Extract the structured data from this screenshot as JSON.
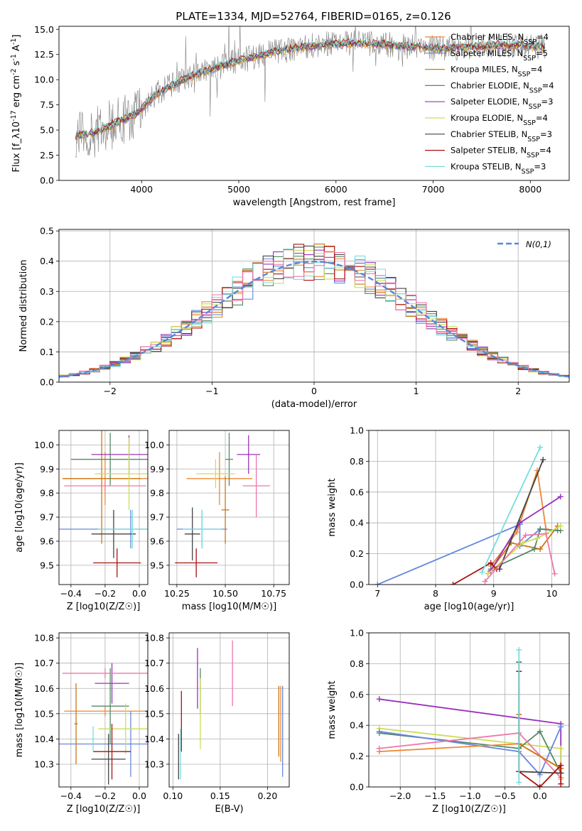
{
  "figure_title": "PLATE=1334, MJD=52764, FIBERID=0165, z=0.126",
  "colors": {
    "chabrier_miles": "#ee8833",
    "salpeter_miles": "#6688dd",
    "kroupa_miles": "#cc7711",
    "chabrier_elodie": "#558866",
    "salpeter_elodie": "#9933bb",
    "kroupa_elodie": "#ccdd55",
    "chabrier_stelib": "#444444",
    "salpeter_stelib": "#aa1111",
    "kroupa_stelib": "#77dddd",
    "pink": "#ee77aa",
    "data": "#808080",
    "normal": "#5588dd"
  },
  "chart_data": [
    {
      "id": "spectrum",
      "type": "line",
      "title": "PLATE=1334, MJD=52764, FIBERID=0165, z=0.126",
      "xlabel": "wavelength [Angstrom, rest frame]",
      "ylabel": "Flux [f_λ10^-17 erg cm^-2 s^-1 A^-1]",
      "xlim": [
        3150,
        8400
      ],
      "ylim": [
        0,
        15.3
      ],
      "xticks": [
        4000,
        5000,
        6000,
        7000,
        8000
      ],
      "yticks": [
        0.0,
        2.5,
        5.0,
        7.5,
        10.0,
        12.5,
        15.0
      ],
      "ytick_labels": [
        "0.0",
        "2.5",
        "5.0",
        "7.5",
        "10.0",
        "12.5",
        "15.0"
      ],
      "legend_position": "upper right",
      "series": [
        {
          "name": "Chabrier MILES, N_SSP=4",
          "color": "#ee8833"
        },
        {
          "name": "Salpeter MILES, N_SSP=5",
          "color": "#6688dd"
        },
        {
          "name": "Kroupa MILES, N_SSP=4",
          "color": "#cc7711"
        },
        {
          "name": "Chabrier ELODIE, N_SSP=4",
          "color": "#558866"
        },
        {
          "name": "Salpeter ELODIE, N_SSP=3",
          "color": "#9933bb"
        },
        {
          "name": "Kroupa ELODIE, N_SSP=4",
          "color": "#ccdd55"
        },
        {
          "name": "Chabrier STELIB, N_SSP=3",
          "color": "#444444"
        },
        {
          "name": "Salpeter STELIB, N_SSP=4",
          "color": "#aa1111"
        },
        {
          "name": "Kroupa STELIB, N_SSP=3",
          "color": "#77dddd"
        }
      ],
      "continuum_x": [
        3350,
        3500,
        3650,
        3800,
        3950,
        4050,
        4150,
        4300,
        4500,
        4700,
        4900,
        5100,
        5300,
        5500,
        5700,
        5900,
        6100,
        6300,
        6500,
        6700,
        6900,
        7100,
        7300,
        7500,
        7700,
        7900,
        8100
      ],
      "continuum_y": [
        4.5,
        4.7,
        5.3,
        6.0,
        6.6,
        7.6,
        8.6,
        9.4,
        10.3,
        11.0,
        11.6,
        12.1,
        12.6,
        13.0,
        13.3,
        13.5,
        13.6,
        13.6,
        13.5,
        13.3,
        13.2,
        13.1,
        13.2,
        13.3,
        13.4,
        13.4,
        13.3
      ]
    },
    {
      "id": "residuals",
      "type": "line",
      "xlabel": "(data-model)/error",
      "ylabel": "Normed distribution",
      "xlim": [
        -2.5,
        2.5
      ],
      "ylim": [
        0,
        0.505
      ],
      "xticks": [
        -2,
        -1,
        0,
        1,
        2
      ],
      "xtick_labels": [
        "−2",
        "−1",
        "0",
        "1",
        "2"
      ],
      "yticks": [
        0.0,
        0.1,
        0.2,
        0.3,
        0.4,
        0.5
      ],
      "ytick_labels": [
        "0.0",
        "0.1",
        "0.2",
        "0.3",
        "0.4",
        "0.5"
      ],
      "bin_width": 0.1,
      "legend": "N(0,1)",
      "legend_position": "upper right"
    },
    {
      "id": "age_vs_Z",
      "type": "scatter",
      "xlabel": "Z [log10(Z/Z☉)]",
      "ylabel": "age  [log10(age/yr)]",
      "xlim": [
        -0.47,
        0.05
      ],
      "ylim": [
        9.42,
        10.06
      ],
      "xticks": [
        -0.4,
        -0.2,
        0.0
      ],
      "xtick_labels": [
        "−0.4",
        "−0.2",
        "0.0"
      ],
      "yticks": [
        9.5,
        9.6,
        9.7,
        9.8,
        9.9,
        10.0
      ],
      "ytick_labels": [
        "9.5",
        "9.6",
        "9.7",
        "9.8",
        "9.9",
        "10.0"
      ],
      "points": [
        {
          "x": -0.2,
          "xerr": 0.25,
          "y": 9.86,
          "yerr": 0.11,
          "color": "#ee8833"
        },
        {
          "x": -0.05,
          "xerr": 0.43,
          "y": 9.65,
          "yerr": 0.08,
          "color": "#6688dd"
        },
        {
          "x": -0.22,
          "xerr": 0.23,
          "y": 9.86,
          "yerr": 0.27,
          "color": "#cc7711"
        },
        {
          "x": -0.17,
          "xerr": 0.23,
          "y": 9.94,
          "yerr": 0.11,
          "color": "#558866"
        },
        {
          "x": -0.06,
          "xerr": 0.22,
          "y": 9.96,
          "yerr": 0.08,
          "color": "#9933bb"
        },
        {
          "x": -0.06,
          "xerr": 0.2,
          "y": 9.88,
          "yerr": 0.15,
          "color": "#ccdd55"
        },
        {
          "x": -0.15,
          "xerr": 0.13,
          "y": 9.63,
          "yerr": 0.1,
          "color": "#444444"
        },
        {
          "x": -0.13,
          "xerr": 0.14,
          "y": 9.51,
          "yerr": 0.06,
          "color": "#aa1111"
        },
        {
          "x": -0.04,
          "xerr": 0.2,
          "y": 9.65,
          "yerr": 0.08,
          "color": "#77dddd"
        },
        {
          "x": -0.2,
          "xerr": 0.24,
          "y": 9.83,
          "yerr": 0.02,
          "color": "#ee77aa"
        }
      ]
    },
    {
      "id": "age_vs_mass",
      "type": "scatter",
      "xlabel": "mass [log10(M/M☉)]",
      "xlim": [
        10.21,
        10.83
      ],
      "ylim": [
        9.42,
        10.06
      ],
      "xticks": [
        10.25,
        10.5,
        10.75
      ],
      "xtick_labels": [
        "10.25",
        "10.50",
        "10.75"
      ],
      "yticks": [
        9.5,
        9.6,
        9.7,
        9.8,
        9.9,
        10.0
      ],
      "ytick_labels": [
        "9.5",
        "9.6",
        "9.7",
        "9.8",
        "9.9",
        "10.0"
      ],
      "points": [
        {
          "x": 10.47,
          "xerr": 0.17,
          "y": 9.86,
          "yerr": 0.11,
          "color": "#ee8833"
        },
        {
          "x": 10.38,
          "xerr": 0.13,
          "y": 9.65,
          "yerr": 0.08,
          "color": "#6688dd"
        },
        {
          "x": 10.5,
          "xerr": 0.02,
          "y": 9.73,
          "yerr": 0.14,
          "color": "#cc7711"
        },
        {
          "x": 10.52,
          "xerr": 0.02,
          "y": 9.94,
          "yerr": 0.11,
          "color": "#558866"
        },
        {
          "x": 10.62,
          "xerr": 0.06,
          "y": 9.96,
          "yerr": 0.08,
          "color": "#9933bb"
        },
        {
          "x": 10.45,
          "xerr": 0.1,
          "y": 9.88,
          "yerr": 0.06,
          "color": "#ccdd55"
        },
        {
          "x": 10.33,
          "xerr": 0.04,
          "y": 9.63,
          "yerr": 0.11,
          "color": "#444444"
        },
        {
          "x": 10.35,
          "xerr": 0.11,
          "y": 9.51,
          "yerr": 0.06,
          "color": "#aa1111"
        },
        {
          "x": 10.38,
          "xerr": 0.1,
          "y": 9.65,
          "yerr": 0.08,
          "color": "#77dddd"
        },
        {
          "x": 10.66,
          "xerr": 0.07,
          "y": 9.83,
          "yerr": 0.13,
          "color": "#ee77aa"
        }
      ]
    },
    {
      "id": "weight_vs_age",
      "type": "line",
      "xlabel": "age  [log10(age/yr)]",
      "ylabel": "mass weight",
      "xlim": [
        6.85,
        10.3
      ],
      "ylim": [
        0,
        1.0
      ],
      "xticks": [
        7,
        8,
        9,
        10
      ],
      "xtick_labels": [
        "7",
        "8",
        "9",
        "10"
      ],
      "yticks": [
        0.0,
        0.2,
        0.4,
        0.6,
        0.8,
        1.0
      ],
      "ytick_labels": [
        "0.0",
        "0.2",
        "0.4",
        "0.6",
        "0.8",
        "1.0"
      ],
      "series": [
        {
          "color": "#6688dd",
          "x": [
            7.0,
            9.45,
            9.45,
            9.8,
            10.1
          ],
          "y": [
            0.0,
            0.39,
            0.25,
            0.36,
            0.35
          ]
        },
        {
          "color": "#ee8833",
          "x": [
            8.95,
            9.4,
            9.75,
            9.9
          ],
          "y": [
            0.12,
            0.34,
            0.74,
            0.36
          ]
        },
        {
          "color": "#cc7711",
          "x": [
            8.9,
            9.3,
            9.8,
            10.1
          ],
          "y": [
            0.07,
            0.27,
            0.23,
            0.38
          ]
        },
        {
          "color": "#558866",
          "x": [
            8.95,
            9.7,
            9.8,
            10.15
          ],
          "y": [
            0.1,
            0.23,
            0.36,
            0.35
          ]
        },
        {
          "color": "#9933bb",
          "x": [
            8.95,
            9.45,
            10.15
          ],
          "y": [
            0.09,
            0.4,
            0.57
          ]
        },
        {
          "color": "#ccdd55",
          "x": [
            8.9,
            9.5,
            9.75,
            10.15
          ],
          "y": [
            0.07,
            0.27,
            0.3,
            0.38
          ]
        },
        {
          "color": "#444444",
          "x": [
            9.1,
            9.85
          ],
          "y": [
            0.1,
            0.81
          ]
        },
        {
          "color": "#aa1111",
          "x": [
            8.3,
            8.95,
            9.05
          ],
          "y": [
            0.0,
            0.14,
            0.1
          ]
        },
        {
          "color": "#77dddd",
          "x": [
            8.8,
            9.8
          ],
          "y": [
            0.08,
            0.89
          ]
        },
        {
          "color": "#ee77aa",
          "x": [
            8.85,
            9.55,
            9.9,
            10.05
          ],
          "y": [
            0.02,
            0.32,
            0.33,
            0.07
          ]
        }
      ]
    },
    {
      "id": "mass_vs_Z",
      "type": "scatter",
      "xlabel": "Z [log10(Z/Z☉)]",
      "ylabel": "mass [log10(M/M☉)]",
      "xlim": [
        -0.47,
        0.05
      ],
      "ylim": [
        10.21,
        10.82
      ],
      "xticks": [
        -0.4,
        -0.2,
        0.0
      ],
      "xtick_labels": [
        "−0.4",
        "−0.2",
        "0.0"
      ],
      "yticks": [
        10.3,
        10.4,
        10.5,
        10.6,
        10.7,
        10.8
      ],
      "ytick_labels": [
        "10.3",
        "10.4",
        "10.5",
        "10.6",
        "10.7",
        "10.8"
      ],
      "points": [
        {
          "x": -0.2,
          "xerr": 0.24,
          "y": 10.51,
          "yerr": 0.02,
          "color": "#ee8833"
        },
        {
          "x": -0.05,
          "xerr": 0.43,
          "y": 10.38,
          "yerr": 0.13,
          "color": "#6688dd"
        },
        {
          "x": -0.37,
          "xerr": 0.01,
          "y": 10.46,
          "yerr": 0.16,
          "color": "#cc7711"
        },
        {
          "x": -0.17,
          "xerr": 0.11,
          "y": 10.53,
          "yerr": 0.15,
          "color": "#558866"
        },
        {
          "x": -0.16,
          "xerr": 0.1,
          "y": 10.62,
          "yerr": 0.08,
          "color": "#9933bb"
        },
        {
          "x": -0.08,
          "xerr": 0.16,
          "y": 10.44,
          "yerr": 0.1,
          "color": "#ccdd55"
        },
        {
          "x": -0.18,
          "xerr": 0.1,
          "y": 10.32,
          "yerr": 0.1,
          "color": "#444444"
        },
        {
          "x": -0.16,
          "xerr": 0.11,
          "y": 10.35,
          "yerr": 0.11,
          "color": "#aa1111"
        },
        {
          "x": -0.27,
          "xerr": 0.01,
          "y": 10.4,
          "yerr": 0.05,
          "color": "#77dddd"
        },
        {
          "x": -0.2,
          "xerr": 0.25,
          "y": 10.66,
          "yerr": 0.02,
          "color": "#ee77aa"
        }
      ]
    },
    {
      "id": "mass_vs_ebv",
      "type": "scatter",
      "xlabel": "E(B-V)",
      "xlim": [
        0.096,
        0.223
      ],
      "ylim": [
        10.21,
        10.82
      ],
      "xticks": [
        0.1,
        0.15,
        0.2
      ],
      "xtick_labels": [
        "0.10",
        "0.15",
        "0.20"
      ],
      "yticks": [
        10.3,
        10.4,
        10.5,
        10.6,
        10.7,
        10.8
      ],
      "ytick_labels": [
        "10.3",
        "10.4",
        "10.5",
        "10.6",
        "10.7",
        "10.8"
      ],
      "points": [
        {
          "x": 0.214,
          "xerr": 0.0,
          "y": 10.46,
          "yerr": 0.15,
          "color": "#ee8833"
        },
        {
          "x": 0.216,
          "xerr": 0.0,
          "y": 10.43,
          "yerr": 0.18,
          "color": "#6688dd"
        },
        {
          "x": 0.212,
          "xerr": 0.0,
          "y": 10.47,
          "yerr": 0.14,
          "color": "#cc7711"
        },
        {
          "x": 0.129,
          "xerr": 0.0,
          "y": 10.59,
          "yerr": 0.09,
          "color": "#558866"
        },
        {
          "x": 0.126,
          "xerr": 0.0,
          "y": 10.64,
          "yerr": 0.12,
          "color": "#9933bb"
        },
        {
          "x": 0.129,
          "xerr": 0.0,
          "y": 10.5,
          "yerr": 0.14,
          "color": "#ccdd55"
        },
        {
          "x": 0.106,
          "xerr": 0.0,
          "y": 10.33,
          "yerr": 0.09,
          "color": "#444444"
        },
        {
          "x": 0.109,
          "xerr": 0.0,
          "y": 10.47,
          "yerr": 0.12,
          "color": "#aa1111"
        },
        {
          "x": 0.108,
          "xerr": 0.0,
          "y": 10.34,
          "yerr": 0.1,
          "color": "#77dddd"
        },
        {
          "x": 0.163,
          "xerr": 0.0,
          "y": 10.66,
          "yerr": 0.13,
          "color": "#ee77aa"
        }
      ]
    },
    {
      "id": "weight_vs_Z",
      "type": "line",
      "xlabel": "Z [log10(Z/Z☉)]",
      "ylabel": "mass weight",
      "xlim": [
        -2.45,
        0.42
      ],
      "ylim": [
        0,
        1.0
      ],
      "xticks": [
        -2.0,
        -1.5,
        -1.0,
        -0.5,
        0.0
      ],
      "xtick_labels": [
        "−2.0",
        "−1.5",
        "−1.0",
        "−0.5",
        "0.0"
      ],
      "yticks": [
        0.0,
        0.2,
        0.4,
        0.6,
        0.8,
        1.0
      ],
      "ytick_labels": [
        "0.0",
        "0.2",
        "0.4",
        "0.6",
        "0.8",
        "1.0"
      ],
      "series": [
        {
          "color": "#9933bb",
          "x": [
            -2.3,
            0.3,
            0.3
          ],
          "y": [
            0.57,
            0.41,
            0.09
          ]
        },
        {
          "color": "#ccdd55",
          "x": [
            -2.3,
            -0.3,
            0.3,
            0.3
          ],
          "y": [
            0.38,
            0.28,
            0.25,
            0.05
          ]
        },
        {
          "color": "#558866",
          "x": [
            -2.3,
            -0.3,
            0.0,
            0.3
          ],
          "y": [
            0.35,
            0.25,
            0.36,
            0.09
          ]
        },
        {
          "color": "#6688dd",
          "x": [
            -2.3,
            -0.3,
            0.0,
            0.3
          ],
          "y": [
            0.36,
            0.23,
            0.08,
            0.39
          ]
        },
        {
          "color": "#ee8833",
          "x": [
            -2.3,
            -0.3,
            0.3
          ],
          "y": [
            0.23,
            0.28,
            0.12
          ]
        },
        {
          "color": "#ee77aa",
          "x": [
            -2.3,
            -0.3,
            0.3
          ],
          "y": [
            0.25,
            0.35,
            0.06
          ]
        },
        {
          "color": "#cc7711",
          "x": [
            -0.3,
            -0.3,
            0.3
          ],
          "y": [
            0.47,
            0.28,
            0.12
          ]
        },
        {
          "color": "#444444",
          "x": [
            -0.3,
            -0.3,
            0.3
          ],
          "y": [
            0.81,
            0.1,
            0.09
          ]
        },
        {
          "color": "#aa1111",
          "x": [
            -0.3,
            -0.3,
            0.0,
            0.3,
            0.3
          ],
          "y": [
            0.75,
            0.1,
            0.0,
            0.14,
            0.02
          ]
        },
        {
          "color": "#77dddd",
          "x": [
            -0.3,
            -0.3
          ],
          "y": [
            0.89,
            0.03
          ]
        }
      ]
    }
  ]
}
